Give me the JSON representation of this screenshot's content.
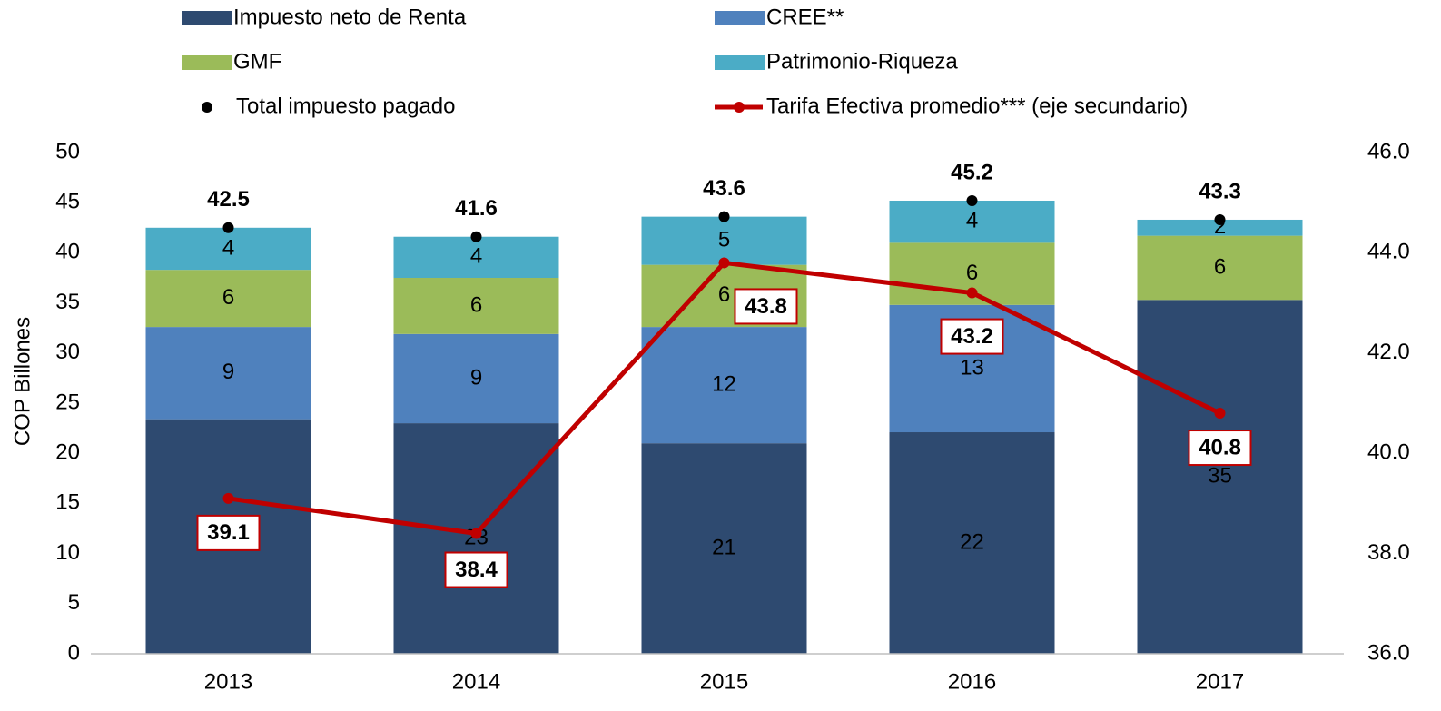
{
  "chart_data": {
    "type": "bar",
    "categories": [
      "2013",
      "2014",
      "2015",
      "2016",
      "2017"
    ],
    "ylabel": "COP Billones",
    "ylim": [
      0,
      50
    ],
    "yticks": [
      0,
      5,
      10,
      15,
      20,
      25,
      30,
      35,
      40,
      45,
      50
    ],
    "y2lim": [
      36,
      46
    ],
    "y2ticks": [
      {
        "value": 36,
        "label": "36.0"
      },
      {
        "value": 38,
        "label": "38.0"
      },
      {
        "value": 40,
        "label": "40.0"
      },
      {
        "value": 42,
        "label": "42.0"
      },
      {
        "value": 44,
        "label": "44.0"
      },
      {
        "value": 46,
        "label": "46.0"
      }
    ],
    "grid": false,
    "stacked": true,
    "series": [
      {
        "name": "Impuesto neto de Renta",
        "type": "bar",
        "color": "#2e4a70",
        "label_color": "#ffffff",
        "values": [
          23.4,
          23.0,
          21.0,
          22.1,
          35.3
        ],
        "value_labels": [
          "23",
          "23",
          "21",
          "22",
          "35"
        ]
      },
      {
        "name": "CREE**",
        "type": "bar",
        "color": "#4f81bd",
        "label_color": "#ffffff",
        "values": [
          9.2,
          8.9,
          11.6,
          12.7,
          0
        ],
        "value_labels": [
          "9",
          "9",
          "12",
          "13",
          null
        ]
      },
      {
        "name": "GMF",
        "type": "bar",
        "color": "#9bbb59",
        "label_color": "#ffffff",
        "values": [
          5.7,
          5.6,
          6.2,
          6.2,
          6.4
        ],
        "value_labels": [
          "6",
          "6",
          "6",
          "6",
          "6"
        ]
      },
      {
        "name": "Patrimonio-Riqueza",
        "type": "bar",
        "color": "#4bacc6",
        "label_color": "#000000",
        "values": [
          4.2,
          4.1,
          4.8,
          4.2,
          1.6
        ],
        "value_labels": [
          "4",
          "4",
          "5",
          "4",
          "2"
        ]
      },
      {
        "name": "Total impuesto pagado",
        "type": "scatter",
        "color": "#000000",
        "label_color": "#404040",
        "values": [
          42.5,
          41.6,
          43.6,
          45.2,
          43.3
        ]
      },
      {
        "name": "Tarifa Efectiva promedio*** (eje secundario)",
        "type": "line",
        "axis": "y2",
        "color": "#c00000",
        "label_color": "#c00000",
        "values": [
          39.1,
          38.4,
          43.8,
          43.2,
          40.8
        ]
      }
    ]
  }
}
